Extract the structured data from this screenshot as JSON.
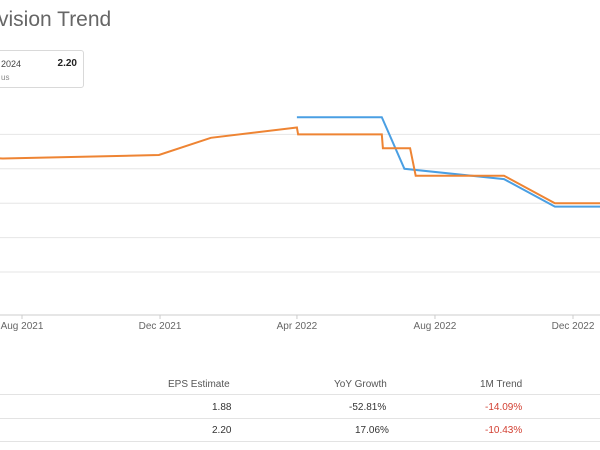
{
  "header": {
    "title": "vision Trend"
  },
  "legend": {
    "period": "2024",
    "value": "2.20",
    "sub": "us"
  },
  "colors": {
    "series1": "#4a9fe3",
    "series2": "#ee8433",
    "grid": "#e6e6e6",
    "negative": "#d23f31"
  },
  "chart_data": {
    "type": "line",
    "title": "vision Trend",
    "x_tick_labels": [
      "Aug 2021",
      "Dec 2021",
      "Apr 2022",
      "Aug 2022",
      "Dec 2022"
    ],
    "grid": true,
    "series": [
      {
        "color": "#4a9fe3",
        "points": [
          {
            "x": "2022-04-01",
            "y": 2.45
          },
          {
            "x": "2022-06-15",
            "y": 2.45
          },
          {
            "x": "2022-07-05",
            "y": 2.3
          },
          {
            "x": "2022-10-01",
            "y": 2.27
          },
          {
            "x": "2022-11-15",
            "y": 2.19
          },
          {
            "x": "2023-01-01",
            "y": 2.19
          }
        ]
      },
      {
        "color": "#ee8433",
        "points": [
          {
            "x": "2021-04-01",
            "y": 2.34
          },
          {
            "x": "2021-07-15",
            "y": 2.33
          },
          {
            "x": "2021-11-30",
            "y": 2.34
          },
          {
            "x": "2022-01-15",
            "y": 2.39
          },
          {
            "x": "2022-04-01",
            "y": 2.42
          },
          {
            "x": "2022-04-02",
            "y": 2.4
          },
          {
            "x": "2022-06-15",
            "y": 2.4
          },
          {
            "x": "2022-06-16",
            "y": 2.36
          },
          {
            "x": "2022-07-10",
            "y": 2.36
          },
          {
            "x": "2022-07-15",
            "y": 2.28
          },
          {
            "x": "2022-10-01",
            "y": 2.28
          },
          {
            "x": "2022-11-15",
            "y": 2.2
          },
          {
            "x": "2023-01-01",
            "y": 2.2
          }
        ]
      }
    ]
  },
  "table": {
    "headers": [
      "EPS Estimate",
      "YoY Growth",
      "1M Trend"
    ],
    "rows": [
      [
        "1.88",
        "-52.81%",
        "-14.09%"
      ],
      [
        "2.20",
        "17.06%",
        "-10.43%"
      ]
    ]
  }
}
